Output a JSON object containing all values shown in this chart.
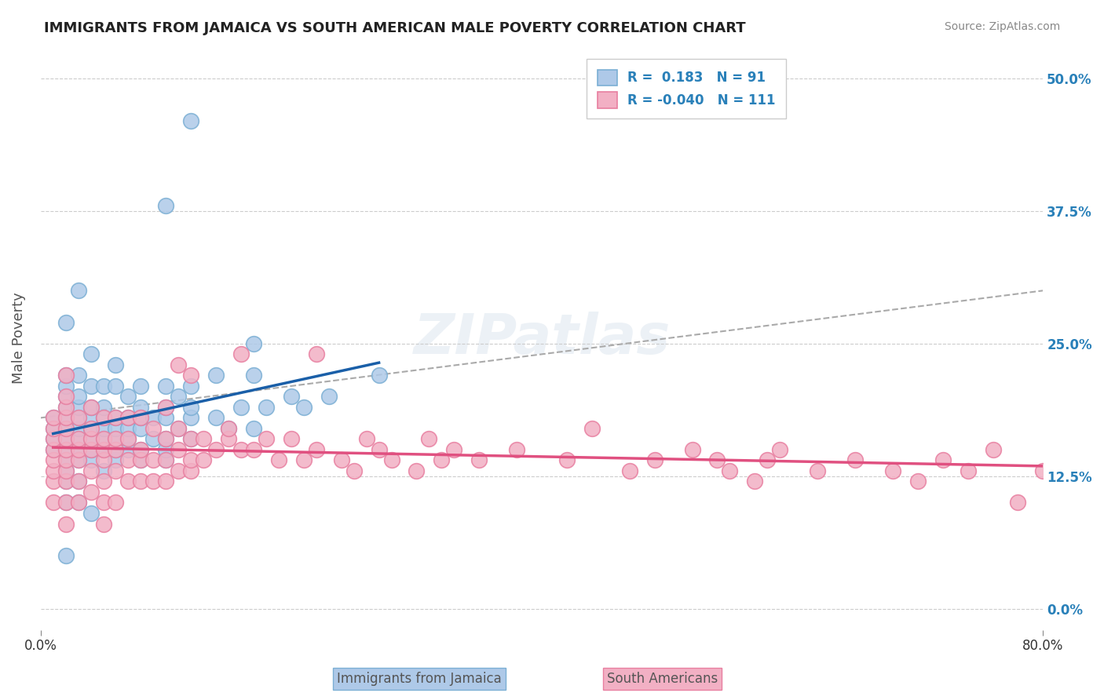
{
  "title": "IMMIGRANTS FROM JAMAICA VS SOUTH AMERICAN MALE POVERTY CORRELATION CHART",
  "source": "Source: ZipAtlas.com",
  "xlabel": "",
  "ylabel": "Male Poverty",
  "xmin": 0.0,
  "xmax": 0.8,
  "ymin": -0.02,
  "ymax": 0.53,
  "yticks": [
    0.0,
    0.125,
    0.25,
    0.375,
    0.5
  ],
  "ytick_labels": [
    "0.0%",
    "12.5%",
    "25.0%",
    "37.5%",
    "50.0%"
  ],
  "xticks": [
    0.0,
    0.8
  ],
  "xtick_labels": [
    "0.0%",
    "80.0%"
  ],
  "r_jamaica": 0.183,
  "n_jamaica": 91,
  "r_south": -0.04,
  "n_south": 111,
  "jamaica_color": "#7bafd4",
  "jamaica_fill": "#aec9e8",
  "south_color": "#e87fa0",
  "south_fill": "#f2b0c4",
  "trend_jamaica_color": "#1a5fa8",
  "trend_south_color": "#e05080",
  "background_color": "#ffffff",
  "watermark": "ZIPatlas",
  "legend_jamaica": "Immigrants from Jamaica",
  "legend_south": "South Americans",
  "jamaica_x": [
    0.01,
    0.01,
    0.01,
    0.01,
    0.02,
    0.02,
    0.02,
    0.02,
    0.02,
    0.02,
    0.02,
    0.02,
    0.02,
    0.02,
    0.02,
    0.02,
    0.02,
    0.02,
    0.03,
    0.03,
    0.03,
    0.03,
    0.03,
    0.03,
    0.03,
    0.03,
    0.03,
    0.03,
    0.03,
    0.04,
    0.04,
    0.04,
    0.04,
    0.04,
    0.04,
    0.04,
    0.04,
    0.04,
    0.05,
    0.05,
    0.05,
    0.05,
    0.05,
    0.05,
    0.05,
    0.06,
    0.06,
    0.06,
    0.06,
    0.06,
    0.06,
    0.06,
    0.07,
    0.07,
    0.07,
    0.07,
    0.07,
    0.08,
    0.08,
    0.08,
    0.08,
    0.08,
    0.08,
    0.09,
    0.09,
    0.1,
    0.1,
    0.1,
    0.1,
    0.1,
    0.1,
    0.1,
    0.11,
    0.11,
    0.12,
    0.12,
    0.12,
    0.12,
    0.12,
    0.14,
    0.14,
    0.15,
    0.16,
    0.17,
    0.17,
    0.17,
    0.18,
    0.2,
    0.21,
    0.23,
    0.27
  ],
  "jamaica_y": [
    0.15,
    0.16,
    0.17,
    0.18,
    0.05,
    0.1,
    0.12,
    0.13,
    0.14,
    0.15,
    0.16,
    0.17,
    0.18,
    0.19,
    0.2,
    0.21,
    0.22,
    0.27,
    0.1,
    0.12,
    0.14,
    0.15,
    0.16,
    0.17,
    0.18,
    0.19,
    0.2,
    0.22,
    0.3,
    0.09,
    0.14,
    0.15,
    0.16,
    0.17,
    0.18,
    0.19,
    0.21,
    0.24,
    0.13,
    0.15,
    0.16,
    0.17,
    0.18,
    0.19,
    0.21,
    0.14,
    0.15,
    0.16,
    0.17,
    0.18,
    0.21,
    0.23,
    0.15,
    0.16,
    0.17,
    0.18,
    0.2,
    0.14,
    0.15,
    0.17,
    0.18,
    0.19,
    0.21,
    0.16,
    0.18,
    0.14,
    0.15,
    0.16,
    0.18,
    0.19,
    0.21,
    0.38,
    0.17,
    0.2,
    0.16,
    0.18,
    0.19,
    0.21,
    0.46,
    0.18,
    0.22,
    0.17,
    0.19,
    0.17,
    0.22,
    0.25,
    0.19,
    0.2,
    0.19,
    0.2,
    0.22
  ],
  "south_x": [
    0.01,
    0.01,
    0.01,
    0.01,
    0.01,
    0.01,
    0.01,
    0.01,
    0.02,
    0.02,
    0.02,
    0.02,
    0.02,
    0.02,
    0.02,
    0.02,
    0.02,
    0.02,
    0.02,
    0.02,
    0.03,
    0.03,
    0.03,
    0.03,
    0.03,
    0.03,
    0.04,
    0.04,
    0.04,
    0.04,
    0.04,
    0.04,
    0.05,
    0.05,
    0.05,
    0.05,
    0.05,
    0.05,
    0.05,
    0.06,
    0.06,
    0.06,
    0.06,
    0.06,
    0.07,
    0.07,
    0.07,
    0.07,
    0.08,
    0.08,
    0.08,
    0.08,
    0.09,
    0.09,
    0.09,
    0.1,
    0.1,
    0.1,
    0.1,
    0.11,
    0.11,
    0.11,
    0.11,
    0.12,
    0.12,
    0.12,
    0.12,
    0.13,
    0.13,
    0.14,
    0.15,
    0.15,
    0.16,
    0.16,
    0.17,
    0.18,
    0.19,
    0.2,
    0.21,
    0.22,
    0.22,
    0.24,
    0.25,
    0.26,
    0.27,
    0.28,
    0.3,
    0.31,
    0.32,
    0.33,
    0.35,
    0.38,
    0.42,
    0.44,
    0.47,
    0.49,
    0.52,
    0.54,
    0.55,
    0.57,
    0.58,
    0.59,
    0.62,
    0.65,
    0.68,
    0.7,
    0.72,
    0.74,
    0.76,
    0.78,
    0.8
  ],
  "south_y": [
    0.1,
    0.12,
    0.13,
    0.14,
    0.15,
    0.16,
    0.17,
    0.18,
    0.08,
    0.1,
    0.12,
    0.13,
    0.14,
    0.15,
    0.16,
    0.17,
    0.18,
    0.19,
    0.2,
    0.22,
    0.1,
    0.12,
    0.14,
    0.15,
    0.16,
    0.18,
    0.11,
    0.13,
    0.15,
    0.16,
    0.17,
    0.19,
    0.08,
    0.1,
    0.12,
    0.14,
    0.15,
    0.16,
    0.18,
    0.1,
    0.13,
    0.15,
    0.16,
    0.18,
    0.12,
    0.14,
    0.16,
    0.18,
    0.12,
    0.14,
    0.15,
    0.18,
    0.12,
    0.14,
    0.17,
    0.12,
    0.14,
    0.16,
    0.19,
    0.13,
    0.15,
    0.17,
    0.23,
    0.13,
    0.14,
    0.16,
    0.22,
    0.14,
    0.16,
    0.15,
    0.16,
    0.17,
    0.15,
    0.24,
    0.15,
    0.16,
    0.14,
    0.16,
    0.14,
    0.15,
    0.24,
    0.14,
    0.13,
    0.16,
    0.15,
    0.14,
    0.13,
    0.16,
    0.14,
    0.15,
    0.14,
    0.15,
    0.14,
    0.17,
    0.13,
    0.14,
    0.15,
    0.14,
    0.13,
    0.12,
    0.14,
    0.15,
    0.13,
    0.14,
    0.13,
    0.12,
    0.14,
    0.13,
    0.15,
    0.1,
    0.13
  ]
}
